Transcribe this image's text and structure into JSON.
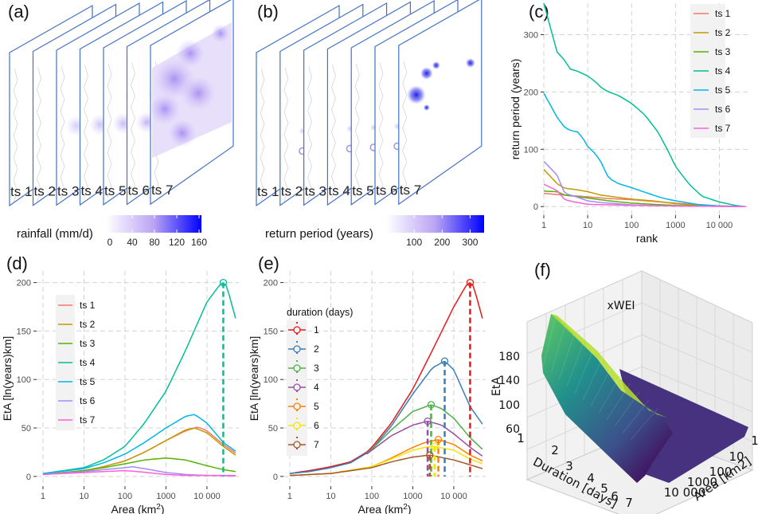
{
  "panels": {
    "a": {
      "label": "(a)",
      "layers": [
        "ts 1",
        "ts 2",
        "ts 3",
        "ts 4",
        "ts 5",
        "ts 6",
        "ts 7"
      ],
      "colorbar": {
        "title": "rainfall (mm/d)",
        "ticks": [
          "0",
          "40",
          "80",
          "120",
          "160"
        ],
        "range": [
          0,
          160
        ],
        "color_low": "#ffffff",
        "color_high": "#0000ff"
      }
    },
    "b": {
      "label": "(b)",
      "layers": [
        "ts 1",
        "ts 2",
        "ts 3",
        "ts 4",
        "ts 5",
        "ts 6",
        "ts 7"
      ],
      "colorbar": {
        "title": "return period (years)",
        "ticks": [
          "100",
          "200",
          "300"
        ],
        "range": [
          0,
          350
        ],
        "color_low": "#ffffff",
        "color_high": "#0000ff"
      }
    },
    "c": {
      "label": "(c)"
    },
    "d": {
      "label": "(d)"
    },
    "e": {
      "label": "(e)"
    },
    "f": {
      "label": "(f)"
    }
  },
  "chart_data": [
    {
      "id": "c",
      "type": "line",
      "title": "",
      "xlabel": "rank",
      "ylabel": "return period (years)",
      "xscale": "log",
      "xlim": [
        1,
        50000
      ],
      "ylim": [
        -15,
        355
      ],
      "xticks": [
        1,
        10,
        100,
        1000,
        10000
      ],
      "xtick_labels": [
        "1",
        "10",
        "100",
        "1000",
        "10 000"
      ],
      "yticks": [
        0,
        100,
        200,
        300
      ],
      "ytick_labels": [
        "0",
        "100",
        "200",
        "300"
      ],
      "grid": true,
      "legend": "top-right",
      "series": [
        {
          "name": "ts 1",
          "color": "#F8766D",
          "x": [
            1,
            3,
            10,
            30,
            100,
            1000,
            5000,
            40000
          ],
          "y": [
            23,
            20,
            17,
            14,
            12,
            6,
            2,
            0
          ]
        },
        {
          "name": "ts 2",
          "color": "#C49A00",
          "x": [
            1,
            2,
            3,
            5,
            10,
            20,
            50,
            100,
            300,
            1000,
            3000,
            40000
          ],
          "y": [
            65,
            40,
            32,
            30,
            26,
            20,
            16,
            13,
            10,
            5,
            2,
            0
          ]
        },
        {
          "name": "ts 3",
          "color": "#53B400",
          "x": [
            1,
            2,
            3,
            10,
            30,
            100,
            300,
            1000,
            3000,
            40000
          ],
          "y": [
            27,
            26,
            20,
            15,
            10,
            6,
            4,
            2,
            1,
            0
          ]
        },
        {
          "name": "ts 4",
          "color": "#00C094",
          "x": [
            1,
            2,
            3,
            4,
            6,
            10,
            15,
            20,
            30,
            50,
            100,
            200,
            400,
            700,
            1000,
            2000,
            4000,
            10000,
            20000,
            35000
          ],
          "y": [
            355,
            270,
            255,
            240,
            236,
            228,
            218,
            208,
            200,
            194,
            180,
            160,
            130,
            95,
            70,
            40,
            18,
            8,
            3,
            0
          ]
        },
        {
          "name": "ts 5",
          "color": "#00B6EB",
          "x": [
            1,
            2,
            3,
            4,
            6,
            8,
            10,
            15,
            20,
            25,
            30,
            50,
            100,
            200,
            500,
            1000,
            3000,
            10000,
            40000
          ],
          "y": [
            198,
            156,
            138,
            133,
            130,
            118,
            105,
            92,
            78,
            62,
            50,
            40,
            33,
            25,
            15,
            10,
            4,
            1,
            0
          ]
        },
        {
          "name": "ts 6",
          "color": "#A58AFF",
          "x": [
            1,
            2,
            3,
            5,
            10,
            20,
            100,
            1000,
            40000
          ],
          "y": [
            79,
            55,
            23,
            18,
            10,
            7,
            3,
            1,
            0
          ]
        },
        {
          "name": "ts 7",
          "color": "#FB61D7",
          "x": [
            1,
            2,
            3,
            5,
            10,
            30,
            100,
            1000,
            40000
          ],
          "y": [
            39,
            28,
            12,
            8,
            4,
            3,
            2,
            1,
            0
          ]
        }
      ]
    },
    {
      "id": "d",
      "type": "line",
      "title": "",
      "xlabel": "Area (km2)",
      "xlabel_main": "Area (km",
      "xlabel_sup": "2",
      "xlabel_end": ")",
      "ylabel": "EtA [ln(years)km]",
      "xscale": "log",
      "xlim": [
        0.7,
        60000
      ],
      "ylim": [
        -10,
        212
      ],
      "xticks": [
        1,
        10,
        100,
        1000,
        10000
      ],
      "xtick_labels": [
        "1",
        "10",
        "100",
        "1000",
        "10 000"
      ],
      "yticks": [
        0,
        50,
        100,
        150,
        200
      ],
      "ytick_labels": [
        "0",
        "50",
        "100",
        "150",
        "200"
      ],
      "grid": true,
      "legend": "top-left",
      "max_marker": {
        "series": "ts 4",
        "x": 25000,
        "y": 200,
        "color": "#00C094"
      },
      "series": [
        {
          "name": "ts 1",
          "color": "#F8766D",
          "x": [
            1,
            10,
            30,
            100,
            300,
            1000,
            3000,
            6000,
            10000,
            25000,
            50000
          ],
          "y": [
            2,
            6,
            10,
            16,
            25,
            37,
            47,
            51,
            47,
            33,
            24
          ]
        },
        {
          "name": "ts 2",
          "color": "#C49A00",
          "x": [
            1,
            10,
            30,
            100,
            300,
            1000,
            3000,
            5000,
            10000,
            25000,
            50000
          ],
          "y": [
            2,
            6,
            10,
            16,
            25,
            37,
            48,
            50,
            45,
            31,
            22
          ]
        },
        {
          "name": "ts 3",
          "color": "#53B400",
          "x": [
            1,
            10,
            30,
            100,
            300,
            1000,
            3000,
            10000,
            25000,
            50000
          ],
          "y": [
            2,
            6,
            9,
            13,
            17,
            19,
            17,
            11,
            7,
            5
          ]
        },
        {
          "name": "ts 4",
          "color": "#00C094",
          "x": [
            1,
            10,
            30,
            100,
            300,
            1000,
            3000,
            10000,
            20000,
            25000,
            30000,
            50000
          ],
          "y": [
            3,
            9,
            17,
            31,
            55,
            88,
            130,
            180,
            197,
            200,
            197,
            163
          ]
        },
        {
          "name": "ts 5",
          "color": "#00B6EB",
          "x": [
            1,
            10,
            30,
            100,
            300,
            1000,
            3000,
            5000,
            10000,
            25000,
            50000
          ],
          "y": [
            3,
            8,
            14,
            23,
            35,
            50,
            62,
            64,
            55,
            35,
            26
          ]
        },
        {
          "name": "ts 6",
          "color": "#A58AFF",
          "x": [
            1,
            10,
            30,
            100,
            150,
            300,
            1000,
            3000,
            10000,
            50000
          ],
          "y": [
            2,
            5,
            7,
            9,
            10,
            8,
            4,
            2,
            1,
            1
          ]
        },
        {
          "name": "ts 7",
          "color": "#FB61D7",
          "x": [
            1,
            10,
            30,
            100,
            200,
            1000,
            3000,
            10000,
            50000
          ],
          "y": [
            2,
            4,
            5,
            6,
            5,
            2,
            1,
            1,
            0.5
          ]
        }
      ]
    },
    {
      "id": "e",
      "type": "line",
      "title": "",
      "xlabel": "Area (km2)",
      "xlabel_main": "Area (km",
      "xlabel_sup": "2",
      "xlabel_end": ")",
      "ylabel": "EtA [ln(years)km]",
      "xscale": "log",
      "xlim": [
        0.7,
        60000
      ],
      "ylim": [
        -10,
        212
      ],
      "xticks": [
        1,
        10,
        100,
        1000,
        10000
      ],
      "xtick_labels": [
        "1",
        "10",
        "100",
        "1000",
        "10 000"
      ],
      "yticks": [
        0,
        50,
        100,
        150,
        200
      ],
      "ytick_labels": [
        "0",
        "50",
        "100",
        "150",
        "200"
      ],
      "grid": true,
      "legend": "left",
      "legend_title": "duration (days)",
      "series": [
        {
          "name": "1",
          "color": "#E41A1C",
          "peak_x": 25000,
          "peak_y": 200,
          "x": [
            1,
            3,
            10,
            30,
            75,
            100,
            300,
            1000,
            3000,
            10000,
            20000,
            25000,
            30000,
            50000
          ],
          "y": [
            3,
            6,
            10,
            15,
            25,
            30,
            55,
            90,
            130,
            175,
            197,
            200,
            197,
            163
          ]
        },
        {
          "name": "2",
          "color": "#377EB8",
          "peak_x": 6000,
          "peak_y": 119,
          "x": [
            1,
            3,
            10,
            30,
            75,
            100,
            300,
            1000,
            3000,
            6000,
            10000,
            25000,
            50000
          ],
          "y": [
            3,
            5,
            9,
            14,
            24,
            28,
            52,
            85,
            112,
            119,
            110,
            72,
            54
          ]
        },
        {
          "name": "3",
          "color": "#4DAF4A",
          "peak_x": 2800,
          "peak_y": 74,
          "x": [
            75,
            100,
            300,
            1000,
            2800,
            5000,
            10000,
            25000,
            50000
          ],
          "y": [
            24,
            28,
            48,
            67,
            74,
            70,
            60,
            40,
            28
          ]
        },
        {
          "name": "4",
          "color": "#984EA3",
          "peak_x": 2300,
          "peak_y": 57,
          "x": [
            75,
            100,
            300,
            1000,
            2300,
            5000,
            10000,
            25000,
            50000
          ],
          "y": [
            23,
            27,
            42,
            53,
            57,
            53,
            44,
            30,
            21
          ]
        },
        {
          "name": "5",
          "color": "#FF7F00",
          "peak_x": 4200,
          "peak_y": 38,
          "x": [
            1,
            10,
            100,
            300,
            1000,
            2000,
            4200,
            10000,
            25000,
            50000
          ],
          "y": [
            1,
            3,
            10,
            19,
            30,
            35,
            38,
            33,
            22,
            16
          ]
        },
        {
          "name": "6",
          "color": "#F2E600",
          "peak_x": 3400,
          "peak_y": 31,
          "x": [
            1,
            10,
            100,
            300,
            1000,
            2000,
            3400,
            10000,
            25000,
            50000
          ],
          "y": [
            1,
            3,
            10,
            18,
            27,
            30,
            31,
            27,
            18,
            13
          ]
        },
        {
          "name": "7",
          "color": "#A65628",
          "peak_x": 2600,
          "peak_y": 22,
          "x": [
            1,
            10,
            100,
            300,
            1000,
            2600,
            10000,
            25000,
            50000
          ],
          "y": [
            1,
            3,
            9,
            15,
            20,
            22,
            17,
            12,
            8
          ]
        }
      ]
    },
    {
      "id": "f",
      "type": "surface",
      "title": "xWEI",
      "xlabel": "Duration [days]",
      "ylabel": "Area [km2]",
      "zlabel": "EtA",
      "xticks": [
        "1",
        "2",
        "3",
        "4",
        "5",
        "6",
        "7"
      ],
      "yticks": [
        "1",
        "10",
        "100",
        "1000",
        "10 000"
      ],
      "zticks": [
        "60",
        "100",
        "140",
        "180"
      ],
      "colormap": "viridis",
      "zmax": 200
    }
  ]
}
